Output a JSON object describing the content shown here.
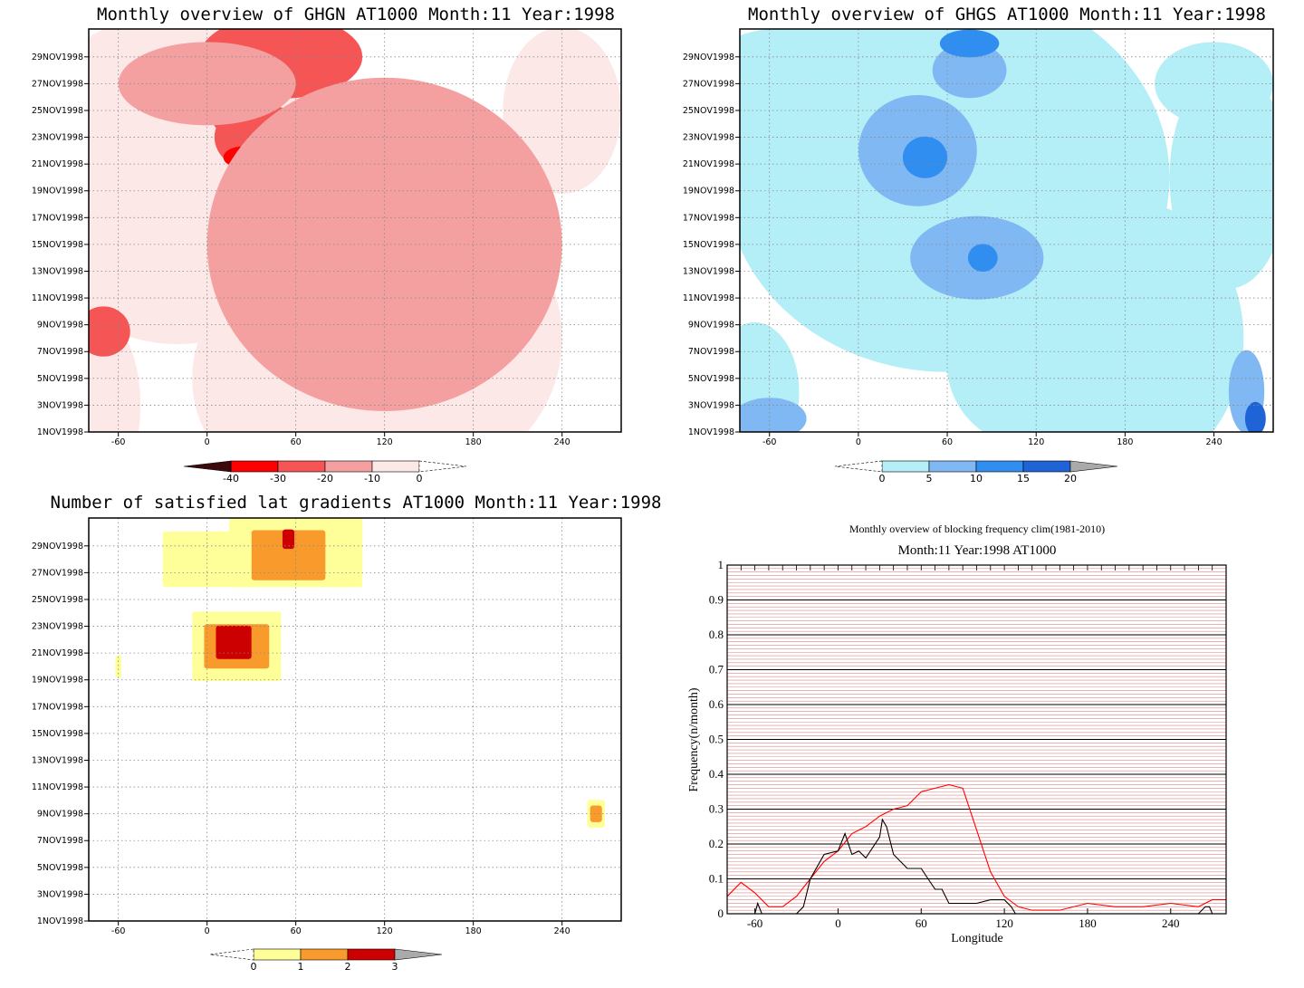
{
  "colors": {
    "red_scale": [
      "#3c0a0a",
      "#ff0000",
      "#f55555",
      "#f5a0a0",
      "#fde8e8"
    ],
    "blue_scale": [
      "#b4eef7",
      "#7fb8f2",
      "#2f8ef0",
      "#1f64d6",
      "#aaaaaa"
    ],
    "yor_scale": [
      "#ffff99",
      "#f99a2c",
      "#cc0000",
      "#aaaaaa"
    ],
    "clim_line": "#ff0000",
    "obs_line": "#000000"
  },
  "chart_data": [
    {
      "type": "heatmap",
      "title": "Monthly overview of GHGN AT1000 Month:11 Year:1998",
      "x_ticks": [
        "-60",
        "0",
        "60",
        "120",
        "180",
        "240"
      ],
      "x_range": [
        -80,
        280
      ],
      "y_ticks": [
        "1NOV1998",
        "3NOV1998",
        "5NOV1998",
        "7NOV1998",
        "9NOV1998",
        "11NOV1998",
        "13NOV1998",
        "15NOV1998",
        "17NOV1998",
        "19NOV1998",
        "21NOV1998",
        "23NOV1998",
        "25NOV1998",
        "27NOV1998",
        "29NOV1998"
      ],
      "colorbar_labels": [
        "-40",
        "-30",
        "-20",
        "-10",
        "0"
      ],
      "regions": [
        {
          "level": "-20",
          "lon": 35,
          "day": 23,
          "w": 30,
          "h": 2.5
        },
        {
          "level": "-20",
          "lon": 50,
          "day": 29,
          "w": 55,
          "h": 3
        },
        {
          "level": "-20",
          "lon": 20,
          "day": 25,
          "w": 18,
          "h": 2
        },
        {
          "level": "-20",
          "lon": -70,
          "day": 8.5,
          "w": 18,
          "h": 1.8
        },
        {
          "level": "-30",
          "lon": 25,
          "day": 21.5,
          "w": 14,
          "h": 0.8
        },
        {
          "level": "-10",
          "lon": 120,
          "day": 15,
          "w": 120,
          "h": 12
        },
        {
          "level": "-10",
          "lon": 0,
          "day": 27,
          "w": 60,
          "h": 3
        }
      ]
    },
    {
      "type": "heatmap",
      "title": "Monthly overview of GHGS AT1000 Month:11 Year:1998",
      "x_ticks": [
        "-60",
        "0",
        "60",
        "120",
        "180",
        "240"
      ],
      "x_range": [
        -80,
        280
      ],
      "y_ticks": [
        "1NOV1998",
        "3NOV1998",
        "5NOV1998",
        "7NOV1998",
        "9NOV1998",
        "11NOV1998",
        "13NOV1998",
        "15NOV1998",
        "17NOV1998",
        "19NOV1998",
        "21NOV1998",
        "23NOV1998",
        "25NOV1998",
        "27NOV1998",
        "29NOV1998"
      ],
      "colorbar_labels": [
        "0",
        "5",
        "10",
        "15",
        "20"
      ],
      "regions": [
        {
          "level": "5",
          "lon": 40,
          "day": 22,
          "w": 40,
          "h": 4
        },
        {
          "level": "5",
          "lon": 80,
          "day": 14,
          "w": 45,
          "h": 3
        },
        {
          "level": "5",
          "lon": 75,
          "day": 28,
          "w": 25,
          "h": 2
        },
        {
          "level": "5",
          "lon": 262,
          "day": 4,
          "w": 12,
          "h": 3
        },
        {
          "level": "5",
          "lon": -60,
          "day": 2,
          "w": 25,
          "h": 1.5
        },
        {
          "level": "10",
          "lon": 45,
          "day": 21.5,
          "w": 15,
          "h": 1.5
        },
        {
          "level": "10",
          "lon": 75,
          "day": 30,
          "w": 20,
          "h": 1
        },
        {
          "level": "10",
          "lon": 84,
          "day": 14,
          "w": 10,
          "h": 1
        },
        {
          "level": "15",
          "lon": 268,
          "day": 2,
          "w": 7,
          "h": 1.2
        }
      ]
    },
    {
      "type": "heatmap",
      "title": "Number of satisfied lat gradients AT1000 Month:11 Year:1998",
      "x_ticks": [
        "-60",
        "0",
        "60",
        "120",
        "180",
        "240"
      ],
      "x_range": [
        -80,
        280
      ],
      "y_ticks": [
        "1NOV1998",
        "3NOV1998",
        "5NOV1998",
        "7NOV1998",
        "9NOV1998",
        "11NOV1998",
        "13NOV1998",
        "15NOV1998",
        "17NOV1998",
        "19NOV1998",
        "21NOV1998",
        "23NOV1998",
        "25NOV1998",
        "27NOV1998",
        "29NOV1998"
      ],
      "colorbar_labels": [
        "0",
        "1",
        "2",
        "3"
      ],
      "regions": [
        {
          "level": "1",
          "lon": 20,
          "day": 21.5,
          "w": 30,
          "h": 2.5
        },
        {
          "level": "2",
          "lon": 20,
          "day": 21.5,
          "w": 22,
          "h": 1.6
        },
        {
          "level": "3",
          "lon": 18,
          "day": 21.8,
          "w": 12,
          "h": 1.2
        },
        {
          "level": "1",
          "lon": 60,
          "day": 28.5,
          "w": 45,
          "h": 2.5
        },
        {
          "level": "2",
          "lon": 55,
          "day": 28.3,
          "w": 25,
          "h": 1.8
        },
        {
          "level": "3",
          "lon": 55,
          "day": 29.5,
          "w": 4,
          "h": 0.7
        },
        {
          "level": "1",
          "lon": 0,
          "day": 28,
          "w": 30,
          "h": 2
        },
        {
          "level": "1",
          "lon": 263,
          "day": 9,
          "w": 6,
          "h": 1
        },
        {
          "level": "2",
          "lon": 263,
          "day": 9,
          "w": 4,
          "h": 0.6
        },
        {
          "level": "1",
          "lon": -60,
          "day": 20,
          "w": 2,
          "h": 0.8
        }
      ]
    },
    {
      "type": "line",
      "title": "Monthly overview of blocking frequency clim(1981-2010)",
      "subtitle": "Month:11 Year:1998  AT1000",
      "xlabel": "Longitude",
      "ylabel": "Frequency(n/month)",
      "x_ticks": [
        "-60",
        "0",
        "60",
        "120",
        "180",
        "240"
      ],
      "y_ticks": [
        "0",
        "0.1",
        "0.2",
        "0.3",
        "0.4",
        "0.5",
        "0.6",
        "0.7",
        "0.8",
        "0.9",
        "1"
      ],
      "xlim": [
        -80,
        280
      ],
      "ylim": [
        0,
        1
      ],
      "series": [
        {
          "role": "clim",
          "x": [
            -80,
            -70,
            -60,
            -50,
            -40,
            -30,
            -20,
            -10,
            0,
            10,
            20,
            30,
            40,
            50,
            60,
            70,
            80,
            90,
            100,
            110,
            120,
            130,
            140,
            150,
            160,
            180,
            200,
            220,
            240,
            260,
            270,
            280
          ],
          "values": [
            0.05,
            0.09,
            0.06,
            0.02,
            0.02,
            0.05,
            0.1,
            0.15,
            0.18,
            0.23,
            0.25,
            0.28,
            0.3,
            0.31,
            0.35,
            0.36,
            0.37,
            0.36,
            0.24,
            0.12,
            0.05,
            0.02,
            0.01,
            0.01,
            0.01,
            0.03,
            0.02,
            0.02,
            0.03,
            0.02,
            0.04,
            0.04
          ]
        },
        {
          "role": "observed",
          "x": [
            -80,
            -60,
            -58,
            -55,
            -50,
            -40,
            -30,
            -25,
            -20,
            -10,
            0,
            5,
            10,
            15,
            20,
            30,
            32,
            35,
            40,
            50,
            60,
            65,
            70,
            75,
            80,
            90,
            95,
            100,
            110,
            120,
            125,
            128,
            130,
            140,
            150,
            160,
            180,
            200,
            220,
            240,
            260,
            265,
            268,
            270,
            280
          ],
          "values": [
            0,
            0,
            0.03,
            0,
            0,
            0,
            0,
            0.02,
            0.1,
            0.17,
            0.18,
            0.23,
            0.17,
            0.18,
            0.16,
            0.22,
            0.27,
            0.25,
            0.17,
            0.13,
            0.13,
            0.1,
            0.07,
            0.07,
            0.03,
            0.03,
            0.03,
            0.03,
            0.04,
            0.04,
            0.02,
            0,
            0,
            0,
            0,
            0,
            0,
            0,
            0,
            0,
            0,
            0.02,
            0.02,
            0,
            0
          ]
        }
      ]
    }
  ]
}
